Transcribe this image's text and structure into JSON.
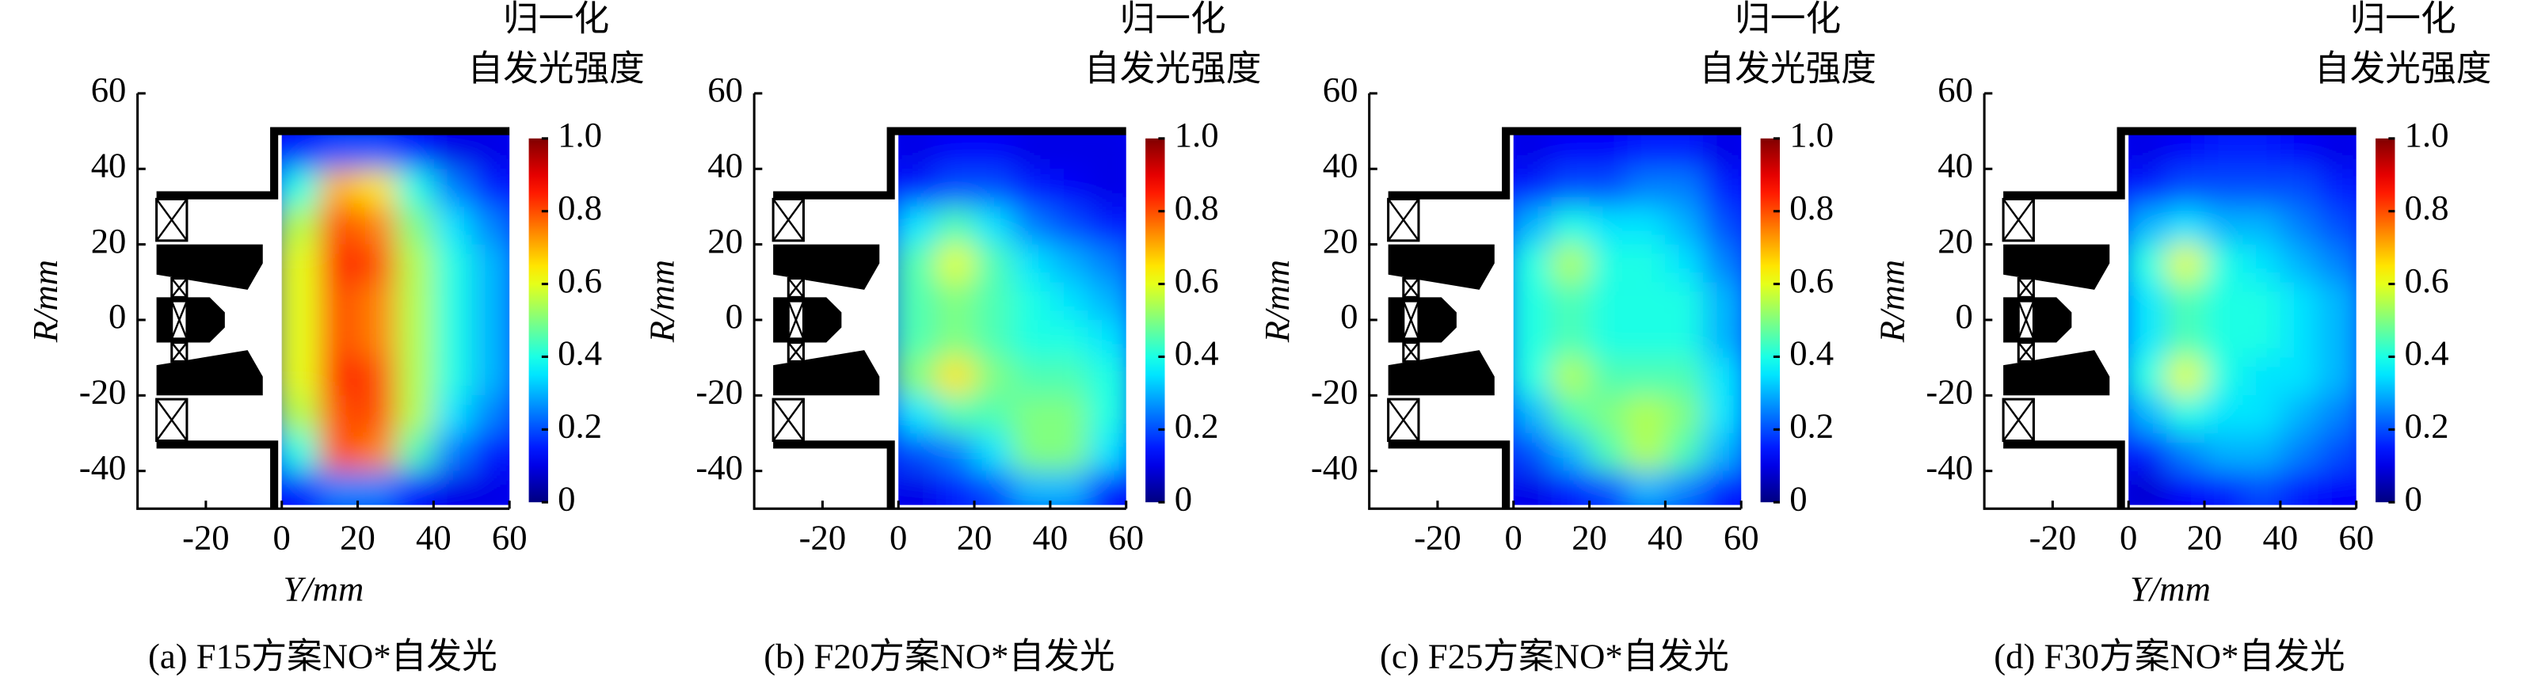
{
  "chart_data": [
    {
      "type": "heatmap",
      "colormap": "jet",
      "caption": "(a) F15方案NO*自发光",
      "xlabel": "Y/mm",
      "ylabel": "R/mm",
      "colorbar_label": [
        "归一化",
        "自发光强度"
      ],
      "xlim": [
        -38,
        60
      ],
      "ylim": [
        -50,
        60
      ],
      "xticks": [
        -20,
        0,
        20,
        40,
        60
      ],
      "yticks": [
        -40,
        -20,
        0,
        20,
        40,
        60
      ],
      "clim": [
        0,
        1
      ],
      "cticks": [
        0,
        0.2,
        0.4,
        0.6,
        0.8,
        {
          "value": 1,
          "label": "1.0"
        }
      ],
      "x": [
        5,
        15,
        25,
        35,
        45,
        55
      ],
      "y": [
        45,
        35,
        25,
        15,
        5,
        -5,
        -15,
        -25,
        -35,
        -45
      ],
      "z": [
        [
          0.15,
          0.2,
          0.2,
          0.15,
          0.1,
          0.1
        ],
        [
          0.4,
          0.7,
          0.65,
          0.4,
          0.25,
          0.15
        ],
        [
          0.55,
          0.8,
          0.75,
          0.5,
          0.35,
          0.25
        ],
        [
          0.6,
          0.85,
          0.8,
          0.55,
          0.4,
          0.3
        ],
        [
          0.6,
          0.8,
          0.75,
          0.55,
          0.4,
          0.3
        ],
        [
          0.6,
          0.8,
          0.75,
          0.55,
          0.4,
          0.3
        ],
        [
          0.6,
          0.85,
          0.8,
          0.55,
          0.4,
          0.3
        ],
        [
          0.55,
          0.8,
          0.8,
          0.55,
          0.35,
          0.25
        ],
        [
          0.4,
          0.8,
          0.75,
          0.45,
          0.25,
          0.15
        ],
        [
          0.15,
          0.25,
          0.25,
          0.15,
          0.1,
          0.1
        ]
      ]
    },
    {
      "type": "heatmap",
      "colormap": "jet",
      "caption": "(b) F20方案NO*自发光",
      "ylabel": "R/mm",
      "colorbar_label": [
        "归一化",
        "自发光强度"
      ],
      "xlim": [
        -38,
        60
      ],
      "ylim": [
        -50,
        60
      ],
      "xticks": [
        -20,
        0,
        20,
        40,
        60
      ],
      "yticks": [
        -40,
        -20,
        0,
        20,
        40,
        60
      ],
      "clim": [
        0,
        1
      ],
      "cticks": [
        0,
        0.2,
        0.4,
        0.6,
        0.8,
        {
          "value": 1,
          "label": "1.0"
        }
      ],
      "x": [
        5,
        15,
        25,
        35,
        45,
        55
      ],
      "y": [
        45,
        35,
        25,
        15,
        5,
        -5,
        -15,
        -25,
        -35,
        -45
      ],
      "z": [
        [
          0.1,
          0.12,
          0.12,
          0.1,
          0.1,
          0.1
        ],
        [
          0.15,
          0.2,
          0.2,
          0.15,
          0.12,
          0.1
        ],
        [
          0.35,
          0.45,
          0.35,
          0.25,
          0.2,
          0.15
        ],
        [
          0.45,
          0.6,
          0.45,
          0.35,
          0.3,
          0.25
        ],
        [
          0.45,
          0.5,
          0.45,
          0.4,
          0.35,
          0.3
        ],
        [
          0.45,
          0.5,
          0.45,
          0.4,
          0.4,
          0.35
        ],
        [
          0.5,
          0.65,
          0.5,
          0.45,
          0.45,
          0.4
        ],
        [
          0.35,
          0.45,
          0.45,
          0.5,
          0.5,
          0.4
        ],
        [
          0.2,
          0.25,
          0.35,
          0.5,
          0.5,
          0.35
        ],
        [
          0.1,
          0.15,
          0.2,
          0.3,
          0.3,
          0.15
        ]
      ]
    },
    {
      "type": "heatmap",
      "colormap": "jet",
      "caption": "(c) F25方案NO*自发光",
      "ylabel": "R/mm",
      "colorbar_label": [
        "归一化",
        "自发光强度"
      ],
      "xlim": [
        -38,
        60
      ],
      "ylim": [
        -50,
        60
      ],
      "xticks": [
        -20,
        0,
        20,
        40,
        60
      ],
      "yticks": [
        -40,
        -20,
        0,
        20,
        40,
        60
      ],
      "clim": [
        0,
        1
      ],
      "cticks": [
        0,
        0.2,
        0.4,
        0.6,
        0.8,
        {
          "value": 1,
          "label": "1.0"
        }
      ],
      "x": [
        5,
        15,
        25,
        35,
        45,
        55
      ],
      "y": [
        45,
        35,
        25,
        15,
        5,
        -5,
        -15,
        -25,
        -35,
        -45
      ],
      "z": [
        [
          0.1,
          0.12,
          0.12,
          0.15,
          0.15,
          0.1
        ],
        [
          0.15,
          0.2,
          0.2,
          0.25,
          0.25,
          0.15
        ],
        [
          0.3,
          0.4,
          0.35,
          0.35,
          0.3,
          0.2
        ],
        [
          0.4,
          0.55,
          0.4,
          0.4,
          0.35,
          0.25
        ],
        [
          0.4,
          0.45,
          0.4,
          0.4,
          0.4,
          0.3
        ],
        [
          0.4,
          0.45,
          0.4,
          0.4,
          0.4,
          0.3
        ],
        [
          0.4,
          0.55,
          0.45,
          0.45,
          0.45,
          0.35
        ],
        [
          0.3,
          0.45,
          0.5,
          0.55,
          0.5,
          0.35
        ],
        [
          0.2,
          0.3,
          0.45,
          0.55,
          0.45,
          0.3
        ],
        [
          0.1,
          0.15,
          0.2,
          0.3,
          0.25,
          0.15
        ]
      ]
    },
    {
      "type": "heatmap",
      "colormap": "jet",
      "caption": "(d) F30方案NO*自发光",
      "xlabel": "Y/mm",
      "ylabel": "R/mm",
      "colorbar_label": [
        "归一化",
        "自发光强度"
      ],
      "xlim": [
        -38,
        60
      ],
      "ylim": [
        -50,
        60
      ],
      "xticks": [
        -20,
        0,
        20,
        40,
        60
      ],
      "yticks": [
        -40,
        -20,
        0,
        20,
        40,
        60
      ],
      "clim": [
        0,
        1
      ],
      "cticks": [
        0,
        0.2,
        0.4,
        0.6,
        0.8,
        {
          "value": 1,
          "label": "1.0"
        }
      ],
      "x": [
        5,
        15,
        25,
        35,
        45,
        55
      ],
      "y": [
        45,
        35,
        25,
        15,
        5,
        -5,
        -15,
        -25,
        -35,
        -45
      ],
      "z": [
        [
          0.1,
          0.12,
          0.15,
          0.15,
          0.12,
          0.1
        ],
        [
          0.15,
          0.2,
          0.2,
          0.2,
          0.2,
          0.15
        ],
        [
          0.3,
          0.35,
          0.3,
          0.3,
          0.25,
          0.2
        ],
        [
          0.4,
          0.6,
          0.4,
          0.35,
          0.3,
          0.25
        ],
        [
          0.35,
          0.45,
          0.4,
          0.4,
          0.35,
          0.3
        ],
        [
          0.35,
          0.45,
          0.4,
          0.4,
          0.35,
          0.3
        ],
        [
          0.4,
          0.6,
          0.4,
          0.35,
          0.35,
          0.3
        ],
        [
          0.3,
          0.4,
          0.35,
          0.35,
          0.3,
          0.25
        ],
        [
          0.15,
          0.25,
          0.3,
          0.3,
          0.25,
          0.2
        ],
        [
          0.08,
          0.12,
          0.15,
          0.2,
          0.15,
          0.12
        ]
      ]
    }
  ]
}
